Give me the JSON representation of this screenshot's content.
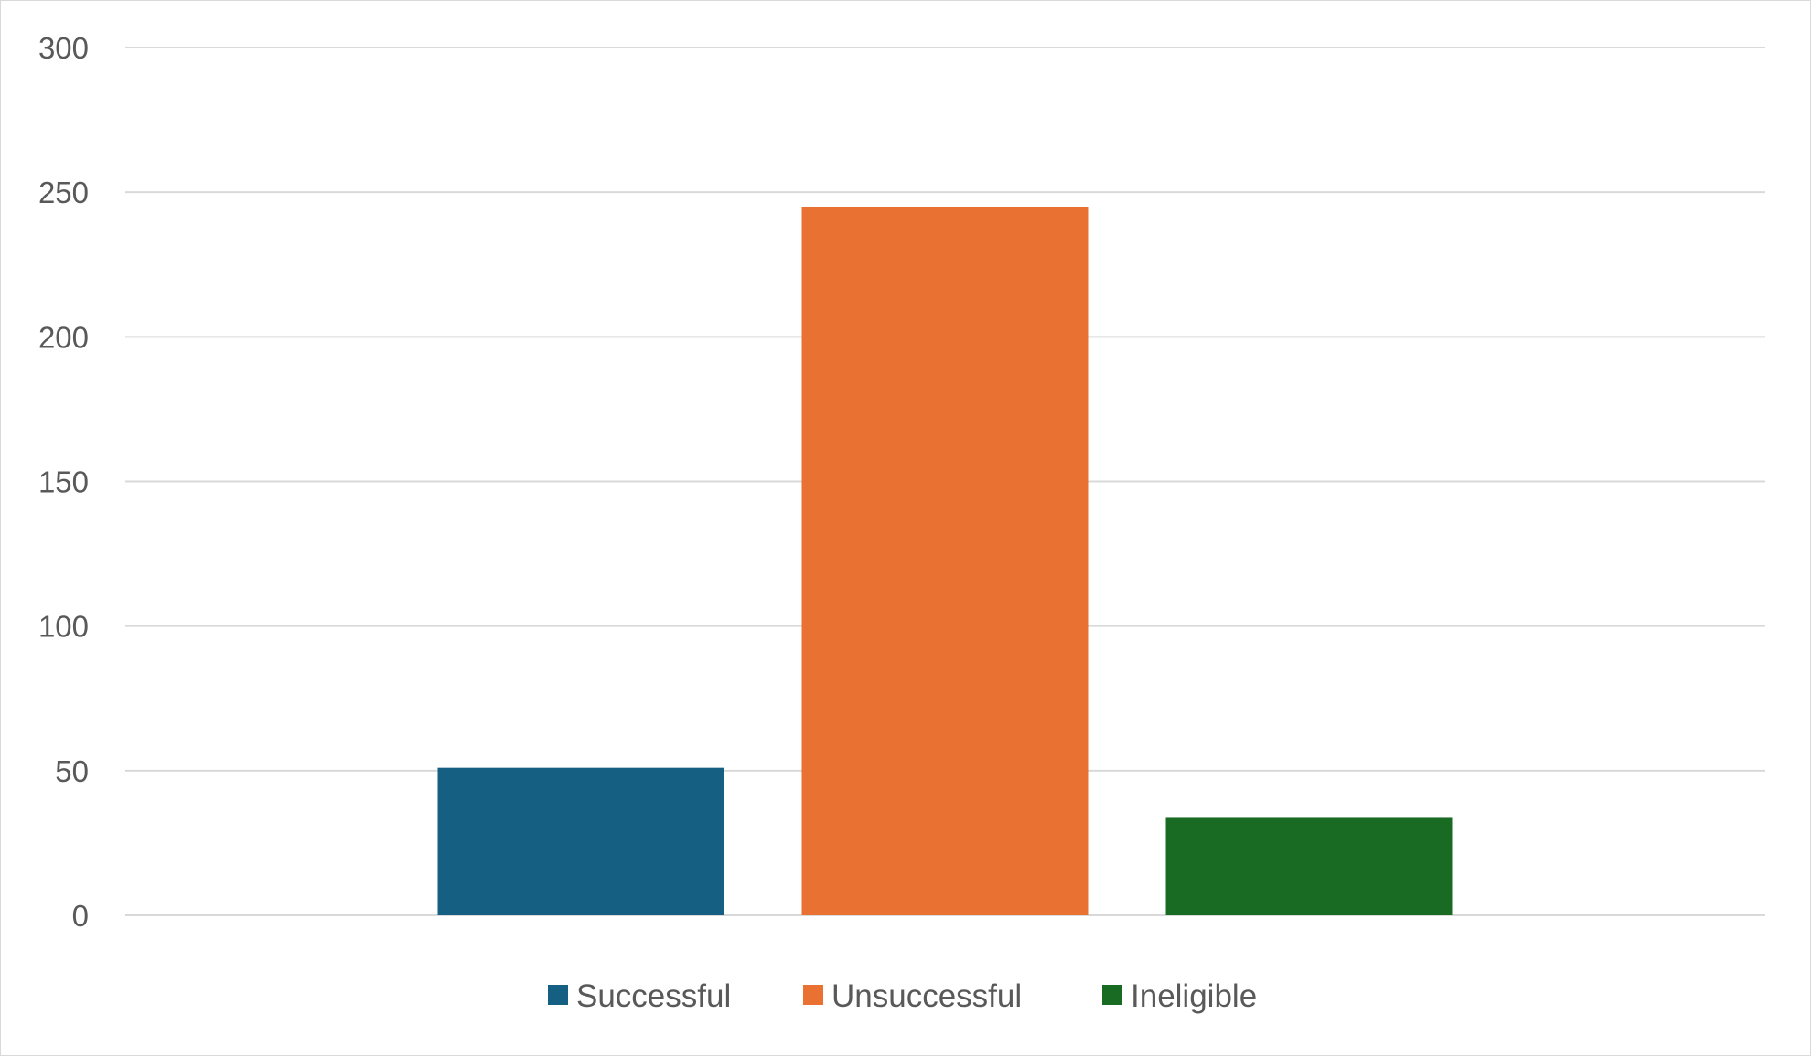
{
  "chart_data": {
    "type": "bar",
    "title": "",
    "xlabel": "",
    "ylabel": "",
    "ylim": [
      0,
      300
    ],
    "yticks": [
      0,
      50,
      100,
      150,
      200,
      250,
      300
    ],
    "grid": true,
    "legend_position": "bottom",
    "series": [
      {
        "name": "Successful",
        "value": 51,
        "color": "#156082"
      },
      {
        "name": "Unsuccessful",
        "value": 245,
        "color": "#E97132"
      },
      {
        "name": "Ineligible",
        "value": 34,
        "color": "#196B24"
      }
    ]
  }
}
